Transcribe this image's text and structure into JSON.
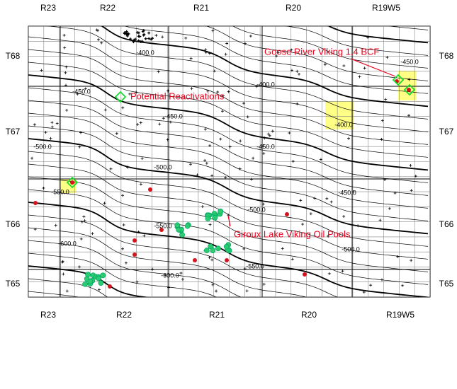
{
  "ranges_top": [
    "R23",
    "R22",
    "R21",
    "R20",
    "R19W5"
  ],
  "ranges_bottom": [
    "R23",
    "R22",
    "R21",
    "R20",
    "R19W5"
  ],
  "townships_left": [
    "T68",
    "T67",
    "T66",
    "T65"
  ],
  "townships_right": [
    "T68",
    "T67",
    "T66",
    "T65"
  ],
  "contour_labels": [
    "-400.0",
    "-450.0",
    "-400.0",
    "-450.0",
    "-500.0",
    "-450.0",
    "-500.0",
    "-550.0",
    "-400.0",
    "-450.0",
    "-500.0",
    "-550.0",
    "-600.0",
    "-500.0",
    "-550.0",
    "-600.0",
    "-450.0"
  ],
  "annotations": {
    "goose_river": "Goose River Viking 1.4 BCF",
    "potential": "Potential Reactivations",
    "giroux": "Giroux Lake Viking Oil Pools"
  }
}
